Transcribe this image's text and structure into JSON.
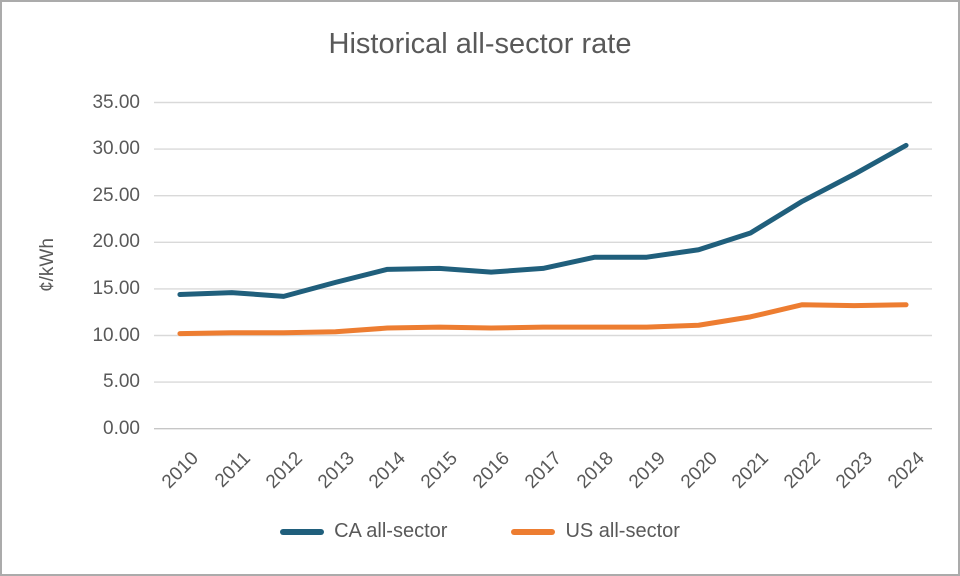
{
  "window": {
    "background": "#ffffff",
    "frame_border_color": "#ababab",
    "gridline_color": "#d9d9d9",
    "baseline_color": "#c6c6c6",
    "text_color": "#595959"
  },
  "chart_data": {
    "type": "line",
    "title": "Historical all-sector rate",
    "ylabel": "¢/kWh",
    "xlabel": "",
    "categories": [
      "2010",
      "2011",
      "2012",
      "2013",
      "2014",
      "2015",
      "2016",
      "2017",
      "2018",
      "2019",
      "2020",
      "2021",
      "2022",
      "2023",
      "2024"
    ],
    "series": [
      {
        "name": "CA all-sector",
        "color": "#205f7c",
        "values": [
          14.4,
          14.6,
          14.2,
          15.7,
          17.1,
          17.2,
          16.8,
          17.2,
          18.4,
          18.4,
          19.2,
          21.0,
          24.4,
          27.3,
          30.4
        ]
      },
      {
        "name": "US all-sector",
        "color": "#ed7d31",
        "values": [
          10.2,
          10.3,
          10.3,
          10.4,
          10.8,
          10.9,
          10.8,
          10.9,
          10.9,
          10.9,
          11.1,
          12.0,
          13.3,
          13.2,
          13.3
        ]
      }
    ],
    "ylim": [
      0,
      35
    ],
    "y_tick_step": 5,
    "y_tick_labels": [
      "0.00",
      "5.00",
      "10.00",
      "15.00",
      "20.00",
      "25.00",
      "30.00",
      "35.00"
    ],
    "grid": "horizontal",
    "legend_position": "bottom"
  }
}
